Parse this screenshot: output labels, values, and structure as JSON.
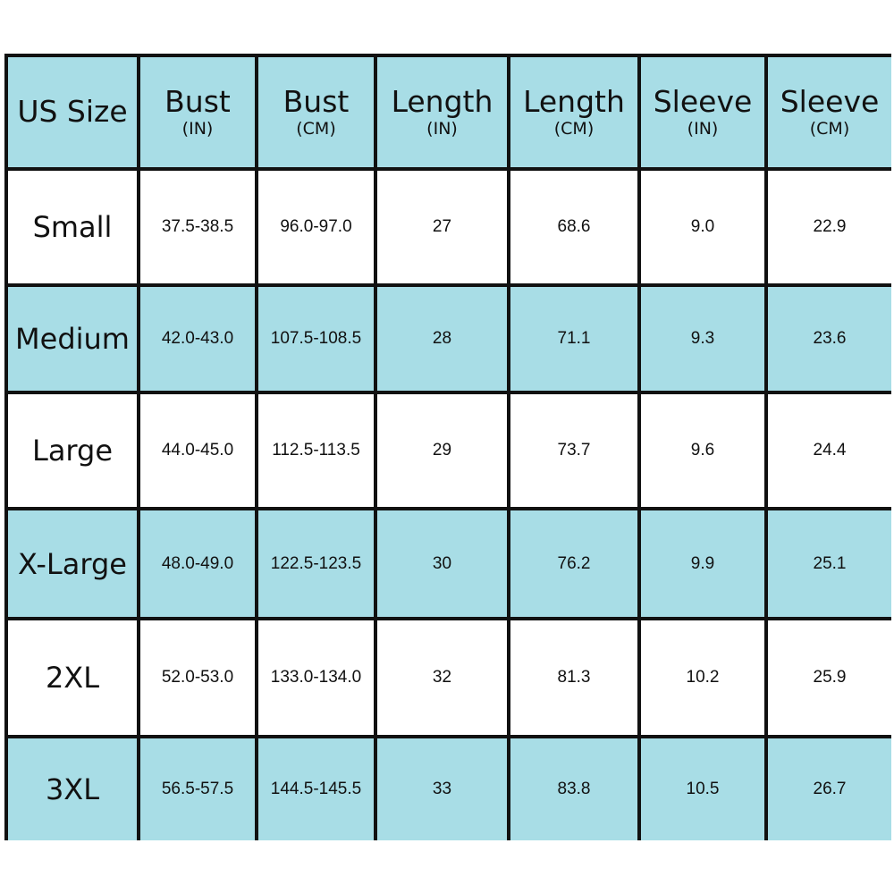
{
  "table": {
    "header": [
      {
        "name": "US Size"
      },
      {
        "name": "Bust",
        "unit": "(IN)"
      },
      {
        "name": "Bust",
        "unit": "(CM)"
      },
      {
        "name": "Length",
        "unit": "(IN)"
      },
      {
        "name": "Length",
        "unit": "(CM)"
      },
      {
        "name": "Sleeve",
        "unit": "(IN)"
      },
      {
        "name": "Sleeve",
        "unit": "(CM)"
      }
    ],
    "rows": [
      [
        "Small",
        "37.5-38.5",
        "96.0-97.0",
        "27",
        "68.6",
        "9.0",
        "22.9"
      ],
      [
        "Medium",
        "42.0-43.0",
        "107.5-108.5",
        "28",
        "71.1",
        "9.3",
        "23.6"
      ],
      [
        "Large",
        "44.0-45.0",
        "112.5-113.5",
        "29",
        "73.7",
        "9.6",
        "24.4"
      ],
      [
        "X-Large",
        "48.0-49.0",
        "122.5-123.5",
        "30",
        "76.2",
        "9.9",
        "25.1"
      ],
      [
        "2XL",
        "52.0-53.0",
        "133.0-134.0",
        "32",
        "81.3",
        "10.2",
        "25.9"
      ],
      [
        "3XL",
        "56.5-57.5",
        "144.5-145.5",
        "33",
        "83.8",
        "10.5",
        "26.7"
      ]
    ]
  }
}
